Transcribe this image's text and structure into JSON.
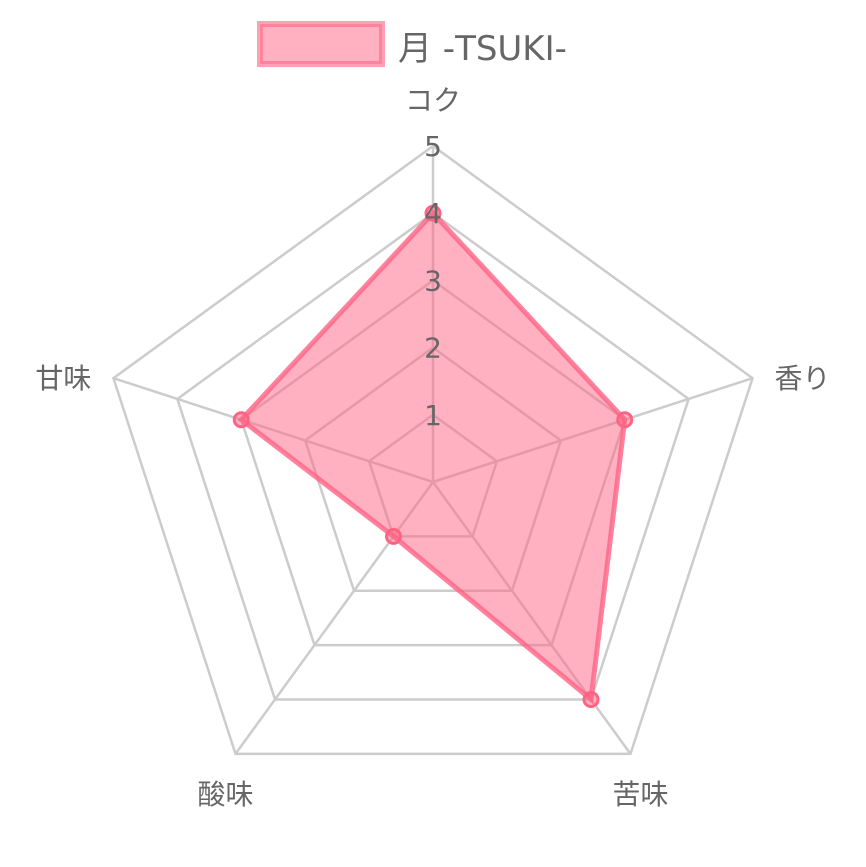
{
  "chart_data": {
    "type": "radar",
    "categories": [
      "コク",
      "香り",
      "苦味",
      "酸味",
      "甘味"
    ],
    "series": [
      {
        "name": "月 -TSUKI-",
        "values": [
          4,
          3,
          4,
          1,
          3
        ],
        "color": "#ff6384",
        "fill": "rgba(255,99,132,0.5)"
      }
    ],
    "rlim": [
      0,
      5
    ],
    "ticks": [
      "1",
      "2",
      "3",
      "4",
      "5"
    ],
    "grid": true,
    "legend": "top",
    "grid_color": "#cccccc"
  }
}
